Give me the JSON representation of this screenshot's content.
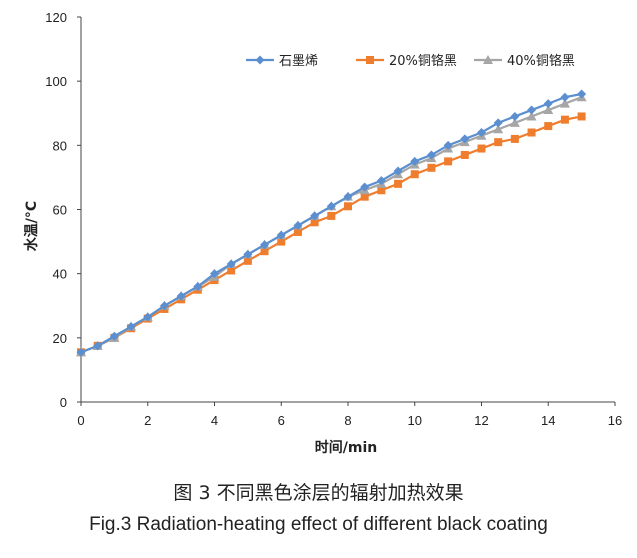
{
  "caption": {
    "zh": "图 3 不同黑色涂层的辐射加热效果",
    "en": "Fig.3 Radiation-heating effect of different black coating"
  },
  "chart_data": {
    "type": "line",
    "xlabel": "时间/min",
    "ylabel": "水温/°C",
    "xlim": [
      0,
      16
    ],
    "ylim": [
      0,
      120
    ],
    "xticks": [
      "0",
      "2",
      "4",
      "6",
      "8",
      "10",
      "12",
      "14",
      "16"
    ],
    "yticks": [
      "0",
      "20",
      "40",
      "60",
      "80",
      "100",
      "120"
    ],
    "grid": false,
    "legend_position": "top-right",
    "x": [
      0,
      0.5,
      1,
      1.5,
      2,
      2.5,
      3,
      3.5,
      4,
      4.5,
      5,
      5.5,
      6,
      6.5,
      7,
      7.5,
      8,
      8.5,
      9,
      9.5,
      10,
      10.5,
      11,
      11.5,
      12,
      12.5,
      13,
      13.5,
      14,
      14.5,
      15
    ],
    "series": [
      {
        "name": "石墨烯",
        "color": "#5b8fd0",
        "marker": "diamond",
        "values": [
          15.5,
          17.5,
          20.5,
          23.5,
          26.5,
          30,
          33,
          36,
          40,
          43,
          46,
          49,
          52,
          55,
          58,
          61,
          64,
          67,
          69,
          72,
          75,
          77,
          80,
          82,
          84,
          87,
          89,
          91,
          93,
          95,
          96
        ]
      },
      {
        "name": "20%铜铬黑",
        "color": "#ef7d2e",
        "marker": "square",
        "values": [
          15.5,
          17.5,
          20,
          23,
          26,
          29,
          32,
          35,
          38,
          41,
          44,
          47,
          50,
          53,
          56,
          58,
          61,
          64,
          66,
          68,
          71,
          73,
          75,
          77,
          79,
          81,
          82,
          84,
          86,
          88,
          89
        ]
      },
      {
        "name": "40%铜铬黑",
        "color": "#a6a6a6",
        "marker": "triangle",
        "values": [
          15.5,
          17.5,
          20,
          23.5,
          26.5,
          30,
          33,
          36,
          39,
          43,
          46,
          49,
          52,
          55,
          58,
          61,
          64,
          66,
          68,
          71,
          74,
          76,
          79,
          81,
          83,
          85,
          87,
          89,
          91,
          93,
          95
        ]
      }
    ]
  }
}
